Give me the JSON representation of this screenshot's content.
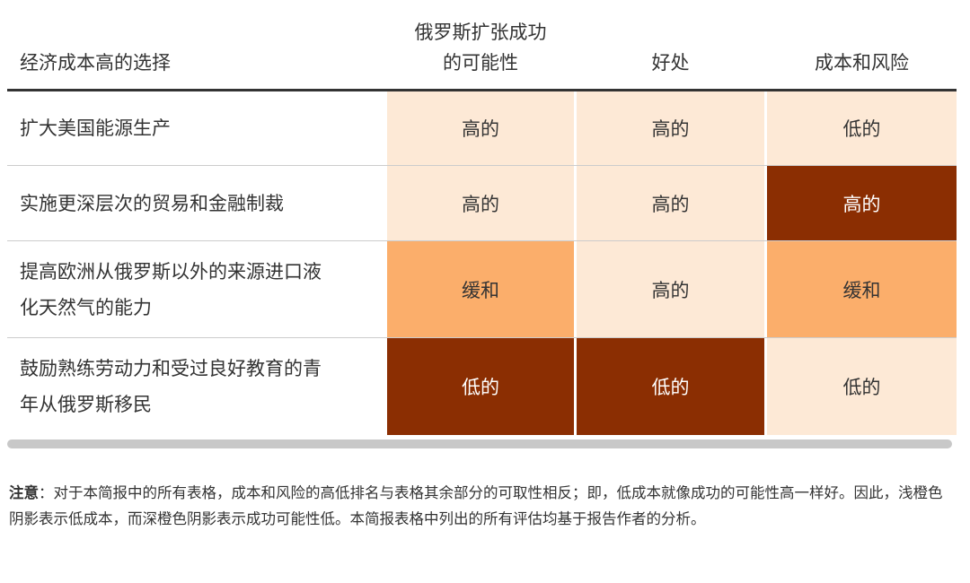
{
  "colors": {
    "low_cost_light": "#fde9d6",
    "moderate": "#fbae6b",
    "dark": "#8b2e02",
    "header_rule": "#333333",
    "row_rule": "#cccccc",
    "scrollbar": "#c8c8c8"
  },
  "table": {
    "headers": [
      "经济成本高的选择",
      "俄罗斯扩张成功的可能性",
      "好处",
      "成本和风险"
    ],
    "header_col1_line1": "俄罗斯扩张成功",
    "header_col1_line2": "的可能性",
    "rows": [
      {
        "label": "扩大美国能源生产",
        "values": [
          "高的",
          "高的",
          "低的"
        ],
        "shades": [
          "light",
          "light",
          "light"
        ]
      },
      {
        "label": "实施更深层次的贸易和金融制裁",
        "values": [
          "高的",
          "高的",
          "高的"
        ],
        "shades": [
          "light",
          "light",
          "dark"
        ]
      },
      {
        "label_line1": "提高欧洲从俄罗斯以外的来源进口液",
        "label_line2": "化天然气的能力",
        "values": [
          "缓和",
          "高的",
          "缓和"
        ],
        "shades": [
          "moderate",
          "light",
          "moderate"
        ]
      },
      {
        "label_line1": "鼓励熟练劳动力和受过良好教育的青",
        "label_line2": "年从俄罗斯移民",
        "values": [
          "低的",
          "低的",
          "低的"
        ],
        "shades": [
          "dark",
          "dark",
          "light"
        ]
      }
    ]
  },
  "note": {
    "label": "注意",
    "text": "：对于本简报中的所有表格，成本和风险的高低排名与表格其余部分的可取性相反；即，低成本就像成功的可能性高一样好。因此，浅橙色阴影表示低成本，而深橙色阴影表示成功可能性低。本简报表格中列出的所有评估均基于报告作者的分析。"
  }
}
